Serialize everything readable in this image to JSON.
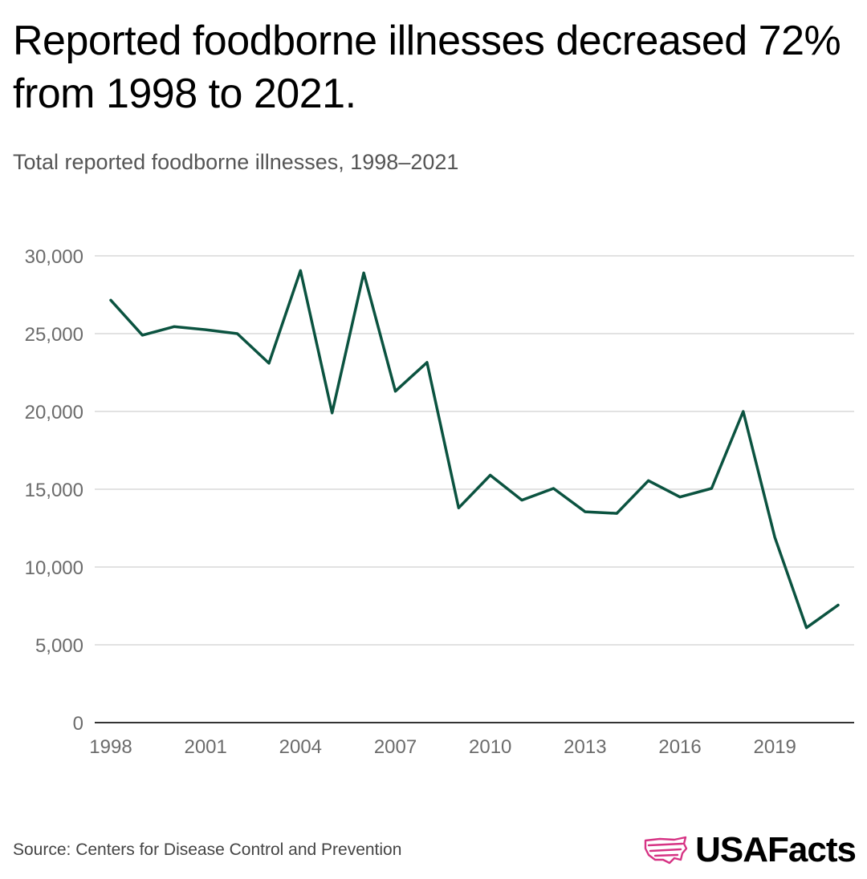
{
  "header": {
    "title": "Reported foodborne illnesses decreased 72% from 1998 to 2021.",
    "subtitle": "Total reported foodborne illnesses, 1998–2021"
  },
  "footer": {
    "source": "Source: Centers for Disease Control and Prevention",
    "brand": "USAFacts",
    "brand_icon": "usa-map-flag-icon"
  },
  "colors": {
    "line": "#0b5340",
    "grid": "#d9d9d9",
    "axis": "#333333",
    "tick_text": "#6b6b6b",
    "brand_accent": "#d63384"
  },
  "chart_data": {
    "type": "line",
    "x": [
      1998,
      1999,
      2000,
      2001,
      2002,
      2003,
      2004,
      2005,
      2006,
      2007,
      2008,
      2009,
      2010,
      2011,
      2012,
      2013,
      2014,
      2015,
      2016,
      2017,
      2018,
      2019,
      2020,
      2021
    ],
    "series": [
      {
        "values": [
          27150,
          24900,
          25450,
          25250,
          25000,
          23100,
          29050,
          19900,
          28900,
          21300,
          23150,
          13800,
          15900,
          14300,
          15050,
          13550,
          13450,
          15550,
          14500,
          15050,
          20000,
          11900,
          6100,
          7550
        ]
      }
    ],
    "xlim": [
      1998,
      2021
    ],
    "ylim": [
      0,
      30000
    ],
    "x_ticks": [
      1998,
      2001,
      2004,
      2007,
      2010,
      2013,
      2016,
      2019
    ],
    "y_ticks": [
      0,
      5000,
      10000,
      15000,
      20000,
      25000,
      30000
    ],
    "x_tick_labels": [
      "1998",
      "2001",
      "2004",
      "2007",
      "2010",
      "2013",
      "2016",
      "2019"
    ],
    "y_tick_labels": [
      "0",
      "5,000",
      "10,000",
      "15,000",
      "20,000",
      "25,000",
      "30,000"
    ],
    "grid": true,
    "legend": "none",
    "xlabel": "",
    "ylabel": ""
  }
}
